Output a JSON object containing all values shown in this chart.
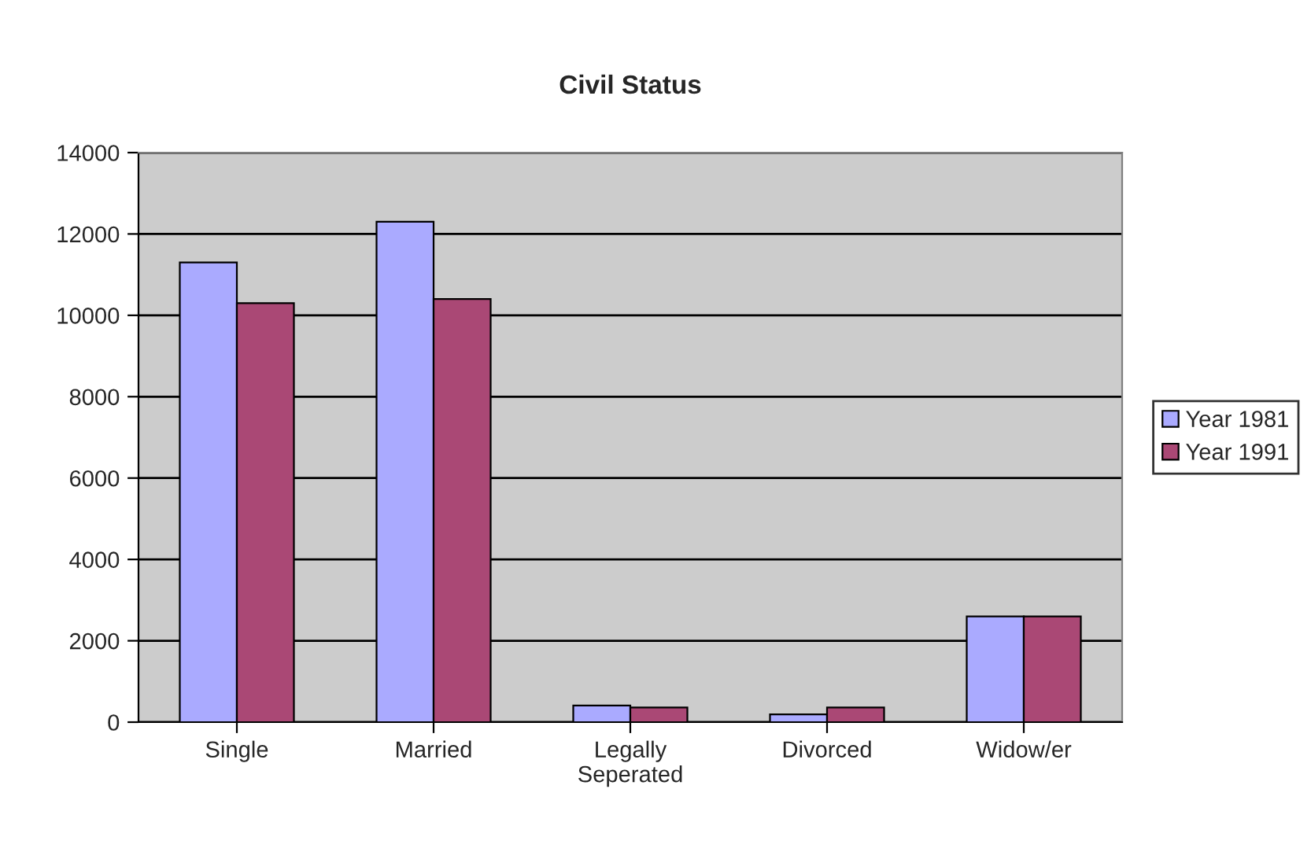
{
  "chart_data": {
    "type": "bar",
    "title": "Civil Status",
    "categories": [
      "Single",
      "Married",
      "Legally\nSeperated",
      "Divorced",
      "Widow/er"
    ],
    "series": [
      {
        "name": "Year 1981",
        "color": "#aaaaff",
        "values": [
          11300,
          12300,
          410,
          190,
          2600
        ]
      },
      {
        "name": "Year 1991",
        "color": "#aa4875",
        "values": [
          10300,
          10400,
          360,
          360,
          2600
        ]
      }
    ],
    "ylim": [
      0,
      14000
    ],
    "yticks": [
      0,
      2000,
      4000,
      6000,
      8000,
      10000,
      12000,
      14000
    ],
    "grid": "y",
    "legend": "right"
  }
}
